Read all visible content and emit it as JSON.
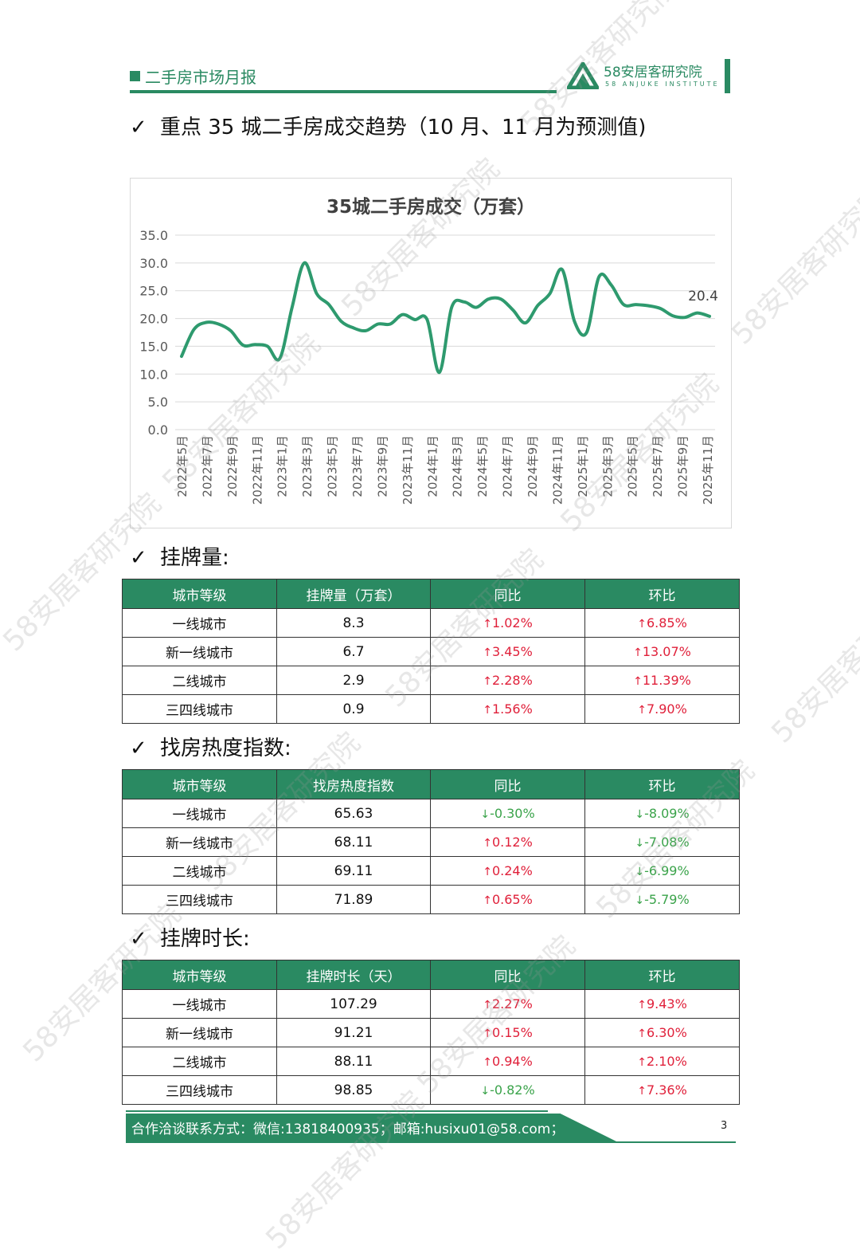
{
  "header": {
    "report_title": "二手房市场月报",
    "logo_name": "58安居客研究院",
    "logo_english": "58 ANJUKE INSTITUTE"
  },
  "section_trend": {
    "title": "重点 35 城二手房成交趋势（10 月、11 月为预测值)"
  },
  "chart_data": {
    "type": "line",
    "title": "35城二手房成交（万套）",
    "ylim": [
      0,
      35
    ],
    "yticks": [
      "35.0",
      "30.0",
      "25.0",
      "20.0",
      "15.0",
      "10.0",
      "5.0",
      "0.0"
    ],
    "x_labels": [
      "2022年5月",
      "2022年7月",
      "2022年9月",
      "2022年11月",
      "2023年1月",
      "2023年3月",
      "2023年5月",
      "2023年7月",
      "2023年9月",
      "2023年11月",
      "2024年1月",
      "2024年3月",
      "2024年5月",
      "2024年7月",
      "2024年9月",
      "2024年11月",
      "2025年1月",
      "2025年3月",
      "2025年5月",
      "2025年7月",
      "2025年9月",
      "2025年11月"
    ],
    "series": [
      {
        "line_color": "#2e9a6e",
        "values": [
          13.2,
          18.0,
          19.3,
          19.0,
          17.8,
          15.2,
          15.3,
          15.0,
          12.8,
          22.0,
          30.0,
          24.5,
          22.5,
          19.5,
          18.3,
          17.8,
          19.0,
          19.0,
          20.7,
          19.8,
          19.8,
          10.3,
          22.0,
          23.0,
          22.0,
          23.5,
          23.5,
          21.5,
          19.2,
          22.3,
          24.5,
          28.8,
          19.5,
          17.5,
          27.5,
          26.0,
          22.5,
          22.5,
          22.3,
          21.8,
          20.5,
          20.2,
          21.0,
          20.4
        ]
      }
    ],
    "data_label": "20.4",
    "grid": true
  },
  "colors": {
    "accent": "#2a8a62",
    "up": "#e0203a",
    "down": "#3aa34a"
  },
  "tables": {
    "listing": {
      "title": "挂牌量:",
      "headers": [
        "城市等级",
        "挂牌量（万套）",
        "同比",
        "环比"
      ],
      "rows": [
        [
          "一线城市",
          "8.3",
          "1.02%",
          "6.85%"
        ],
        [
          "新一线城市",
          "6.7",
          "3.45%",
          "13.07%"
        ],
        [
          "二线城市",
          "2.9",
          "2.28%",
          "11.39%"
        ],
        [
          "三四线城市",
          "0.9",
          "1.56%",
          "7.90%"
        ]
      ]
    },
    "heat": {
      "title": "找房热度指数:",
      "headers": [
        "城市等级",
        "找房热度指数",
        "同比",
        "环比"
      ],
      "rows": [
        [
          "一线城市",
          "65.63",
          "-0.30%",
          "-8.09%"
        ],
        [
          "新一线城市",
          "68.11",
          "0.12%",
          "-7.08%"
        ],
        [
          "二线城市",
          "69.11",
          "0.24%",
          "-6.99%"
        ],
        [
          "三四线城市",
          "71.89",
          "0.65%",
          "-5.79%"
        ]
      ]
    },
    "duration": {
      "title": "挂牌时长:",
      "headers": [
        "城市等级",
        "挂牌时长（天）",
        "同比",
        "环比"
      ],
      "rows": [
        [
          "一线城市",
          "107.29",
          "2.27%",
          "9.43%"
        ],
        [
          "新一线城市",
          "91.21",
          "0.15%",
          "6.30%"
        ],
        [
          "二线城市",
          "88.11",
          "0.94%",
          "2.10%"
        ],
        [
          "三四线城市",
          "98.85",
          "-0.82%",
          "7.36%"
        ]
      ]
    }
  },
  "footer": {
    "contact": "合作洽谈联系方式：微信:13818400935；邮箱:husixu01@58.com；",
    "page_number": "3"
  },
  "watermark": "58安居客研究院"
}
